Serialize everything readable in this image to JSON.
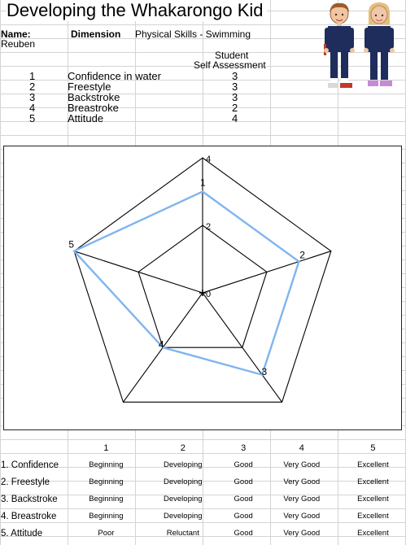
{
  "title": "Developing the Whakarongo Kid",
  "header": {
    "name_label": "Name:",
    "name_value": "Reuben",
    "dimension_label": "Dimension",
    "dimension_value": "Physical Skills - Swimming",
    "assessment_label_1": "Student",
    "assessment_label_2": "Self Assessment"
  },
  "skills": [
    {
      "num": "1",
      "name": "Confidence in water",
      "score": "3"
    },
    {
      "num": "2",
      "name": "Freestyle",
      "score": "3"
    },
    {
      "num": "3",
      "name": "Backstroke",
      "score": "3"
    },
    {
      "num": "4",
      "name": "Breastroke",
      "score": "2"
    },
    {
      "num": "5",
      "name": "Attitude",
      "score": "4"
    }
  ],
  "chart_data": {
    "type": "radar",
    "categories": [
      "1",
      "2",
      "3",
      "4",
      "5"
    ],
    "values": [
      3,
      3,
      3,
      2,
      4
    ],
    "rlim": [
      0,
      4
    ],
    "radial_tick_labels": [
      "0",
      "2",
      "4"
    ],
    "series_color": "#7fb5ef"
  },
  "scale": {
    "columns": [
      "1",
      "2",
      "3",
      "4",
      "5"
    ],
    "rows": [
      {
        "label": "1. Confidence",
        "cells": [
          "Beginning",
          "Developing",
          "Good",
          "Very Good",
          "Excellent"
        ]
      },
      {
        "label": "2. Freestyle",
        "cells": [
          "Beginning",
          "Developing",
          "Good",
          "Very Good",
          "Excellent"
        ]
      },
      {
        "label": "3. Backstroke",
        "cells": [
          "Beginning",
          "Developing",
          "Good",
          "Very Good",
          "Excellent"
        ]
      },
      {
        "label": "4. Breastroke",
        "cells": [
          "Beginning",
          "Developing",
          "Good",
          "Very Good",
          "Excellent"
        ]
      },
      {
        "label": "5. Attitude",
        "cells": [
          "Poor",
          "Reluctant",
          "Good",
          "Very Good",
          "Excellent"
        ]
      }
    ]
  }
}
